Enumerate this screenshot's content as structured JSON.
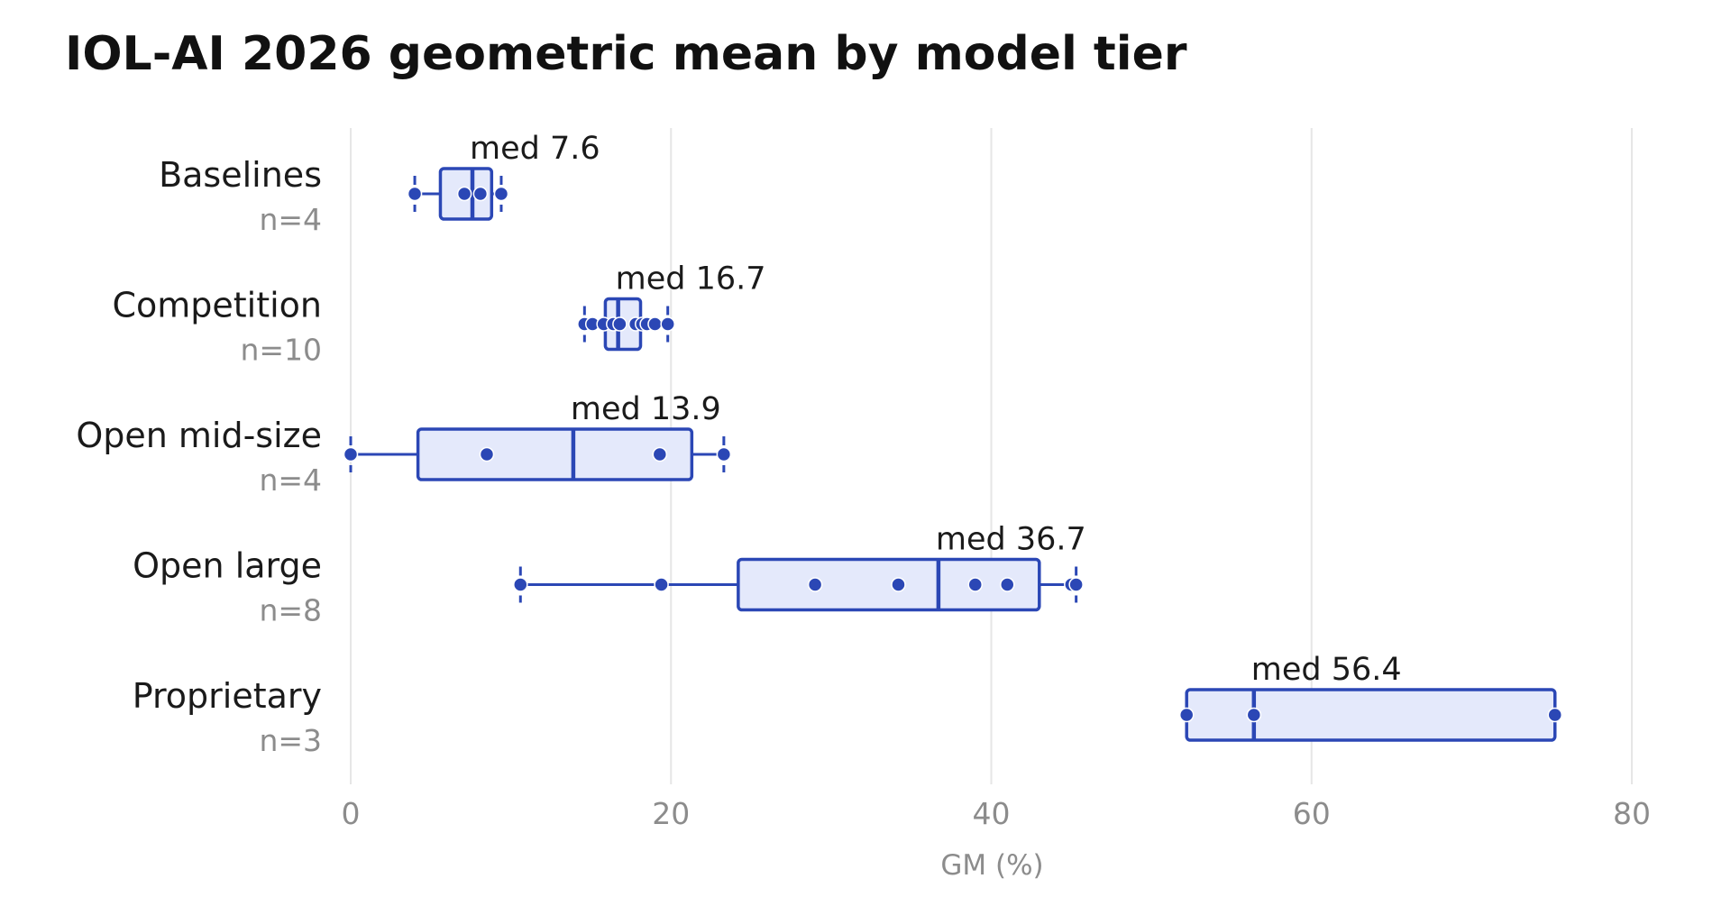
{
  "chart_data": {
    "type": "box",
    "title": "IOL-AI 2026 geometric mean by model tier",
    "xlabel": "GM (%)",
    "ylabel": "",
    "xlim": [
      0,
      80
    ],
    "xticks": [
      0,
      20,
      40,
      60,
      80
    ],
    "grid": "vertical",
    "orientation": "horizontal",
    "colors": {
      "box_stroke": "#2b47b5",
      "box_fill": "#e4e9fb",
      "point": "#2b47b5",
      "grid": "#e6e6e6",
      "muted_text": "#8c8c8c",
      "text": "#1a1a1a"
    },
    "groups": [
      {
        "label": "Baselines",
        "n_label": "n=4",
        "median_label": "med 7.6",
        "min": 4.0,
        "q1": 5.6,
        "median": 7.6,
        "q3": 8.8,
        "max": 9.4,
        "points": [
          4.0,
          7.1,
          8.1,
          9.4
        ]
      },
      {
        "label": "Competition",
        "n_label": "n=10",
        "median_label": "med 16.7",
        "min": 14.6,
        "q1": 15.9,
        "median": 16.7,
        "q3": 18.1,
        "max": 19.8,
        "points": [
          14.6,
          15.1,
          15.8,
          16.4,
          16.8,
          17.8,
          18.2,
          18.5,
          19.0,
          19.8
        ]
      },
      {
        "label": "Open mid-size",
        "n_label": "n=4",
        "median_label": "med 13.9",
        "min": 0.0,
        "q1": 4.2,
        "median": 13.9,
        "q3": 21.3,
        "max": 23.3,
        "points": [
          0.0,
          8.5,
          19.3,
          23.3
        ]
      },
      {
        "label": "Open large",
        "n_label": "n=8",
        "median_label": "med 36.7",
        "min": 10.6,
        "q1": 24.2,
        "median": 36.7,
        "q3": 43.0,
        "max": 45.3,
        "points": [
          10.6,
          19.4,
          29.0,
          34.2,
          39.0,
          41.0,
          45.0,
          45.3
        ]
      },
      {
        "label": "Proprietary",
        "n_label": "n=3",
        "median_label": "med 56.4",
        "min": 52.2,
        "q1": 52.2,
        "median": 56.4,
        "q3": 75.2,
        "max": 75.2,
        "points": [
          52.2,
          56.4,
          75.2
        ]
      }
    ]
  }
}
